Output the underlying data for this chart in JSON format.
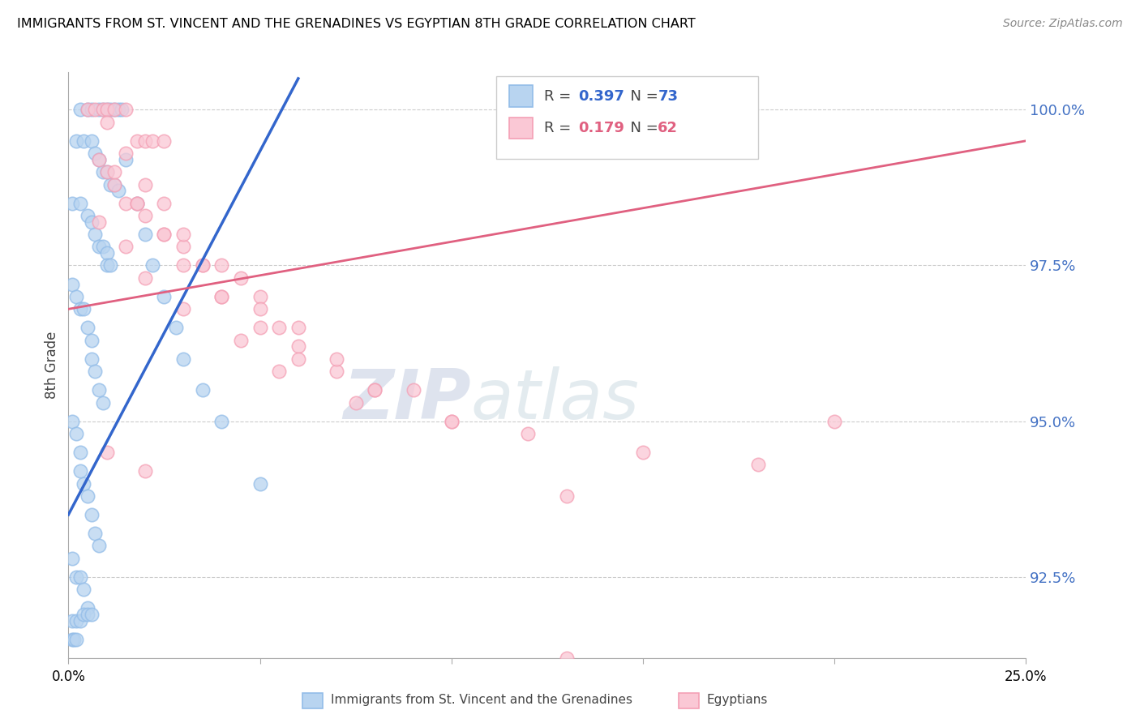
{
  "title": "IMMIGRANTS FROM ST. VINCENT AND THE GRENADINES VS EGYPTIAN 8TH GRADE CORRELATION CHART",
  "source": "Source: ZipAtlas.com",
  "ylabel": "8th Grade",
  "xmin": 0.0,
  "xmax": 25.0,
  "ymin": 91.2,
  "ymax": 100.6,
  "ytick_vals": [
    92.5,
    95.0,
    97.5,
    100.0
  ],
  "ytick_labels": [
    "92.5%",
    "95.0%",
    "97.5%",
    "100.0%"
  ],
  "xtick_vals": [
    0.0,
    5.0,
    10.0,
    15.0,
    20.0,
    25.0
  ],
  "legend_r1": "R = ",
  "legend_v1": "0.397",
  "legend_n1_label": "N = ",
  "legend_n1": "73",
  "legend_r2": "R = ",
  "legend_v2": "0.179",
  "legend_n2_label": "N = ",
  "legend_n2": "62",
  "blue_color": "#92BCE8",
  "pink_color": "#F4A0B5",
  "blue_fill": "#B8D4F0",
  "pink_fill": "#FAC8D5",
  "blue_line_color": "#3366CC",
  "pink_line_color": "#E06080",
  "watermark_zip": "ZIP",
  "watermark_atlas": "atlas",
  "blue_scatter_x": [
    0.3,
    0.5,
    0.6,
    0.8,
    0.9,
    1.0,
    1.1,
    1.2,
    1.3,
    1.4,
    0.2,
    0.4,
    0.6,
    0.7,
    0.8,
    0.9,
    1.0,
    1.1,
    1.2,
    1.3,
    0.1,
    0.3,
    0.5,
    0.6,
    0.7,
    0.8,
    0.9,
    1.0,
    1.0,
    1.1,
    0.1,
    0.2,
    0.3,
    0.4,
    0.5,
    0.6,
    0.6,
    0.7,
    0.8,
    0.9,
    0.1,
    0.2,
    0.3,
    0.3,
    0.4,
    0.5,
    0.6,
    0.7,
    0.8,
    0.1,
    0.2,
    0.3,
    0.4,
    0.5,
    1.5,
    1.8,
    2.0,
    2.2,
    2.5,
    2.8,
    3.0,
    3.5,
    4.0,
    5.0,
    0.1,
    0.15,
    0.2,
    0.1,
    0.2,
    0.3,
    0.4,
    0.5,
    0.6
  ],
  "blue_scatter_y": [
    100.0,
    100.0,
    100.0,
    100.0,
    100.0,
    100.0,
    100.0,
    100.0,
    100.0,
    100.0,
    99.5,
    99.5,
    99.5,
    99.3,
    99.2,
    99.0,
    99.0,
    98.8,
    98.8,
    98.7,
    98.5,
    98.5,
    98.3,
    98.2,
    98.0,
    97.8,
    97.8,
    97.7,
    97.5,
    97.5,
    97.2,
    97.0,
    96.8,
    96.8,
    96.5,
    96.3,
    96.0,
    95.8,
    95.5,
    95.3,
    95.0,
    94.8,
    94.5,
    94.2,
    94.0,
    93.8,
    93.5,
    93.2,
    93.0,
    92.8,
    92.5,
    92.5,
    92.3,
    92.0,
    99.2,
    98.5,
    98.0,
    97.5,
    97.0,
    96.5,
    96.0,
    95.5,
    95.0,
    94.0,
    91.5,
    91.5,
    91.5,
    91.8,
    91.8,
    91.8,
    91.9,
    91.9,
    91.9
  ],
  "pink_scatter_x": [
    0.5,
    0.7,
    0.9,
    1.0,
    1.2,
    1.5,
    1.8,
    2.0,
    2.2,
    2.5,
    0.8,
    1.0,
    1.2,
    1.5,
    1.8,
    2.0,
    2.5,
    3.0,
    3.5,
    4.0,
    4.5,
    5.0,
    5.5,
    6.0,
    7.0,
    8.0,
    9.0,
    10.0,
    1.0,
    1.5,
    2.0,
    2.5,
    3.0,
    3.5,
    4.0,
    5.0,
    6.0,
    7.0,
    8.0,
    10.0,
    12.0,
    15.0,
    18.0,
    1.2,
    1.8,
    2.5,
    3.0,
    4.0,
    5.0,
    6.0,
    13.0,
    0.8,
    1.5,
    2.0,
    3.0,
    4.5,
    5.5,
    7.5,
    20.0,
    1.0,
    2.0,
    13.0
  ],
  "pink_scatter_y": [
    100.0,
    100.0,
    100.0,
    100.0,
    100.0,
    100.0,
    99.5,
    99.5,
    99.5,
    99.5,
    99.2,
    99.0,
    98.8,
    98.5,
    98.5,
    98.3,
    98.0,
    97.8,
    97.5,
    97.5,
    97.3,
    97.0,
    96.5,
    96.2,
    95.8,
    95.5,
    95.5,
    95.0,
    99.8,
    99.3,
    98.8,
    98.5,
    98.0,
    97.5,
    97.0,
    96.8,
    96.5,
    96.0,
    95.5,
    95.0,
    94.8,
    94.5,
    94.3,
    99.0,
    98.5,
    98.0,
    97.5,
    97.0,
    96.5,
    96.0,
    93.8,
    98.2,
    97.8,
    97.3,
    96.8,
    96.3,
    95.8,
    95.3,
    95.0,
    94.5,
    94.2,
    91.2
  ],
  "blue_trend_x": [
    0.0,
    6.0
  ],
  "blue_trend_y": [
    93.5,
    100.5
  ],
  "pink_trend_x": [
    0.0,
    25.0
  ],
  "pink_trend_y": [
    96.8,
    99.5
  ]
}
